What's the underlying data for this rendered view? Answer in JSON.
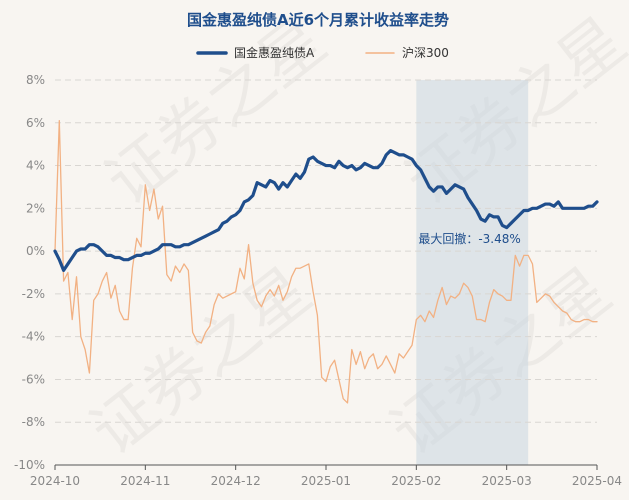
{
  "chart_data": {
    "type": "line",
    "title": "国金惠盈纯债A近6个月累计收益率走势",
    "legend_position": "top",
    "grid": true,
    "ylim": [
      -10,
      8
    ],
    "y_ticks": [
      "8%",
      "6%",
      "4%",
      "2%",
      "0%",
      "-2%",
      "-4%",
      "-6%",
      "-8%",
      "-10%"
    ],
    "x_ticks": [
      "2024-10",
      "2024-11",
      "2024-12",
      "2025-01",
      "2025-02",
      "2025-03",
      "2025-04"
    ],
    "x_tick_positions": [
      0,
      21,
      42,
      63,
      84,
      105,
      126
    ],
    "x_max": 126,
    "series": [
      {
        "name": "国金惠盈纯债A",
        "color": "#1f4e8c",
        "values": [
          0.0,
          -0.4,
          -0.9,
          -0.6,
          -0.3,
          0.0,
          0.1,
          0.1,
          0.3,
          0.3,
          0.2,
          0.0,
          -0.2,
          -0.2,
          -0.3,
          -0.3,
          -0.4,
          -0.4,
          -0.3,
          -0.2,
          -0.2,
          -0.1,
          -0.1,
          0.0,
          0.1,
          0.3,
          0.3,
          0.3,
          0.2,
          0.2,
          0.3,
          0.3,
          0.4,
          0.5,
          0.6,
          0.7,
          0.8,
          0.9,
          1.0,
          1.3,
          1.4,
          1.6,
          1.7,
          1.9,
          2.3,
          2.4,
          2.6,
          3.2,
          3.1,
          3.0,
          3.3,
          3.2,
          2.9,
          3.2,
          3.0,
          3.3,
          3.6,
          3.4,
          3.7,
          4.3,
          4.4,
          4.2,
          4.1,
          4.0,
          4.0,
          3.9,
          4.2,
          4.0,
          3.9,
          4.0,
          3.8,
          3.9,
          4.1,
          4.0,
          3.9,
          3.9,
          4.1,
          4.5,
          4.7,
          4.6,
          4.5,
          4.5,
          4.4,
          4.3,
          4.0,
          3.8,
          3.4,
          3.0,
          2.8,
          3.0,
          3.0,
          2.7,
          2.9,
          3.1,
          3.0,
          2.9,
          2.5,
          2.2,
          1.9,
          1.5,
          1.4,
          1.7,
          1.6,
          1.6,
          1.2,
          1.1,
          1.3,
          1.5,
          1.7,
          1.9,
          1.9,
          2.0,
          2.0,
          2.1,
          2.2,
          2.2,
          2.1,
          2.3,
          2.0,
          2.0,
          2.0,
          2.0,
          2.0,
          2.0,
          2.1,
          2.1,
          2.3
        ]
      },
      {
        "name": "沪深300",
        "color": "#f2b183",
        "values": [
          0.0,
          6.1,
          -1.4,
          -1.0,
          -3.2,
          -1.2,
          -4.0,
          -4.6,
          -5.7,
          -2.3,
          -2.0,
          -1.4,
          -1.0,
          -2.2,
          -1.6,
          -2.8,
          -3.2,
          -3.2,
          -0.8,
          0.6,
          0.2,
          3.1,
          1.9,
          2.9,
          1.5,
          2.1,
          -1.1,
          -1.4,
          -0.7,
          -1.0,
          -0.6,
          -0.9,
          -3.8,
          -4.2,
          -4.3,
          -3.8,
          -3.5,
          -2.5,
          -2.0,
          -2.2,
          -2.1,
          -2.0,
          -1.9,
          -0.8,
          -1.3,
          0.3,
          -1.5,
          -2.3,
          -2.6,
          -2.1,
          -1.8,
          -2.1,
          -1.6,
          -2.3,
          -1.9,
          -1.2,
          -0.8,
          -0.8,
          -0.7,
          -0.6,
          -1.9,
          -3.0,
          -5.9,
          -6.1,
          -5.4,
          -5.1,
          -6.0,
          -6.9,
          -7.1,
          -4.6,
          -5.3,
          -4.7,
          -5.5,
          -5.0,
          -4.8,
          -5.5,
          -5.3,
          -4.9,
          -5.3,
          -5.7,
          -4.8,
          -5.0,
          -4.7,
          -4.4,
          -3.2,
          -3.0,
          -3.3,
          -2.8,
          -3.1,
          -2.3,
          -1.7,
          -2.5,
          -2.1,
          -2.2,
          -2.0,
          -1.5,
          -1.7,
          -2.1,
          -3.2,
          -3.2,
          -3.3,
          -2.4,
          -1.8,
          -2.0,
          -2.1,
          -2.3,
          -2.3,
          -0.2,
          -0.7,
          -0.2,
          -0.2,
          -0.6,
          -2.4,
          -2.2,
          -2.0,
          -2.1,
          -2.4,
          -2.6,
          -2.8,
          -2.9,
          -3.2,
          -3.3,
          -3.3,
          -3.2,
          -3.2,
          -3.3,
          -3.3
        ]
      }
    ],
    "max_drawdown": {
      "label": "最大回撤：-3.48%",
      "start_index": 84,
      "end_index": 110,
      "shade_color": "#c8d6e0"
    }
  },
  "watermark": "证券之星"
}
